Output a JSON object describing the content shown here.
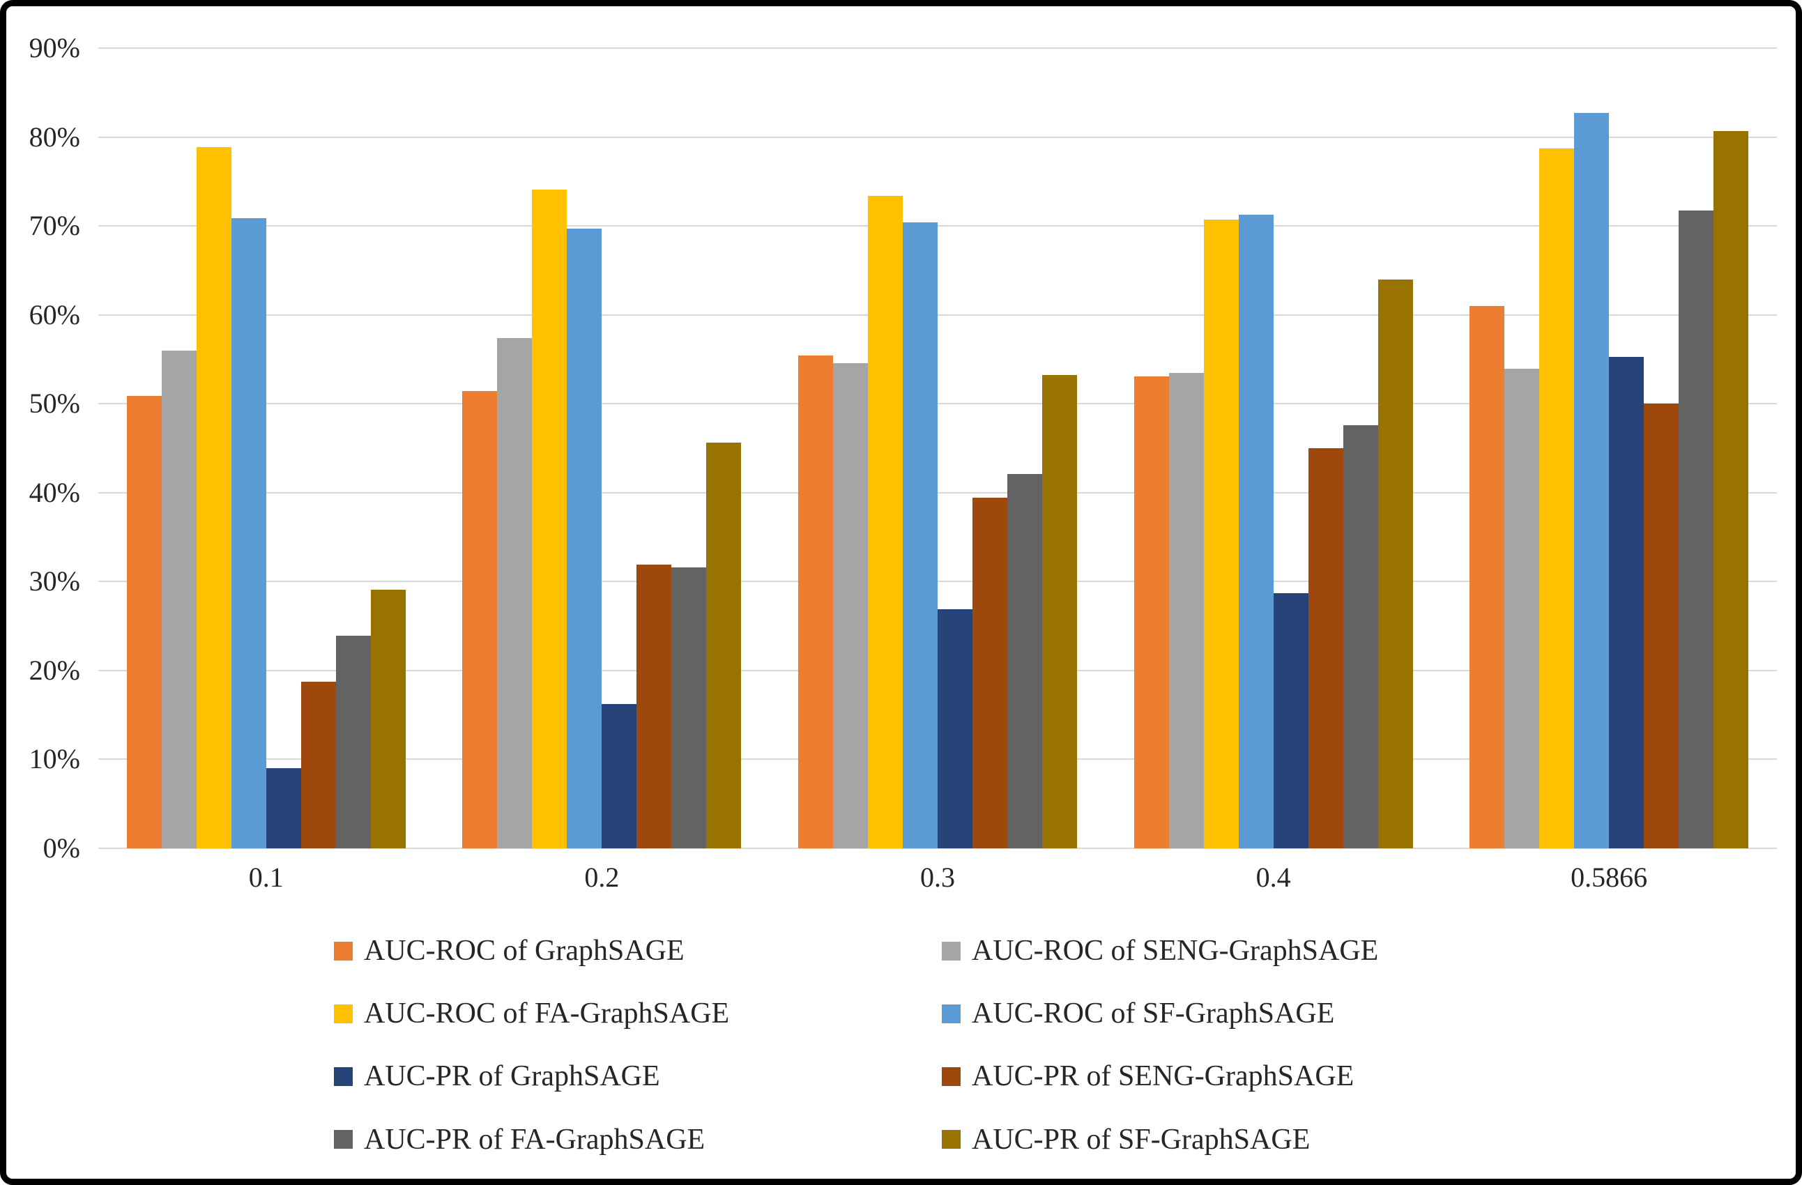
{
  "chart_data": {
    "type": "bar",
    "title": "",
    "xlabel": "",
    "ylabel": "",
    "categories": [
      "0.1",
      "0.2",
      "0.3",
      "0.4",
      "0.5866"
    ],
    "series": [
      {
        "name": "AUC-ROC of GraphSAGE",
        "color": "#ED7D31",
        "values": [
          50.9,
          51.4,
          55.4,
          53.1,
          61.0
        ]
      },
      {
        "name": "AUC-ROC of SENG-GraphSAGE",
        "color": "#A5A5A5",
        "values": [
          56.0,
          57.4,
          54.6,
          53.5,
          53.9
        ]
      },
      {
        "name": "AUC-ROC of FA-GraphSAGE",
        "color": "#FFC000",
        "values": [
          78.9,
          74.1,
          73.4,
          70.7,
          78.7
        ]
      },
      {
        "name": "AUC-ROC of SF-GraphSAGE",
        "color": "#5B9BD5",
        "values": [
          70.9,
          69.7,
          70.4,
          71.3,
          82.7
        ]
      },
      {
        "name": "AUC-PR of GraphSAGE",
        "color": "#264478",
        "values": [
          9.0,
          16.2,
          26.9,
          28.7,
          55.3
        ]
      },
      {
        "name": "AUC-PR of SENG-GraphSAGE",
        "color": "#9E480E",
        "values": [
          18.7,
          31.9,
          39.4,
          45.0,
          50.0
        ]
      },
      {
        "name": "AUC-PR of FA-GraphSAGE",
        "color": "#636363",
        "values": [
          23.9,
          31.6,
          42.1,
          47.6,
          71.7
        ]
      },
      {
        "name": "AUC-PR of SF-GraphSAGE",
        "color": "#997300",
        "values": [
          29.1,
          45.6,
          53.2,
          64.0,
          80.7
        ]
      }
    ],
    "ylim": [
      0,
      90
    ],
    "y_ticks": [
      "0%",
      "10%",
      "20%",
      "30%",
      "40%",
      "50%",
      "60%",
      "70%",
      "80%",
      "90%"
    ],
    "grid": true,
    "legend_position": "bottom",
    "legend_columns": 2
  },
  "colors": {
    "gridline": "#D9D9D9",
    "text": "#262626",
    "frame_border": "#000000",
    "background": "#FFFFFF"
  }
}
